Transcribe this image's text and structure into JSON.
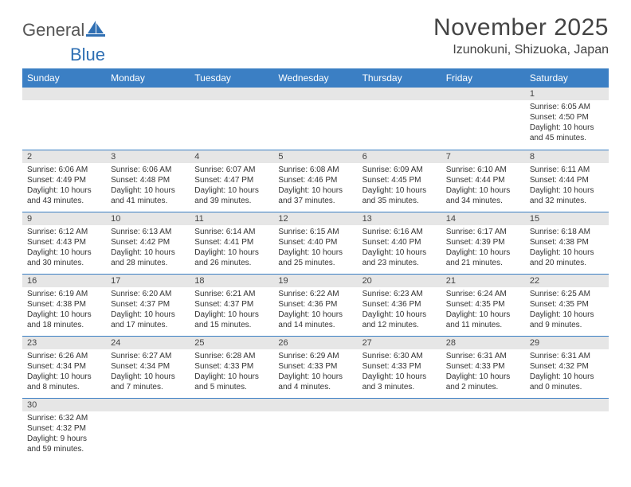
{
  "logo": {
    "text1": "General",
    "text2": "Blue",
    "color1": "#666666",
    "color2": "#2f6fb3"
  },
  "title": "November 2025",
  "location": "Izunokuni, Shizuoka, Japan",
  "header_bg": "#3b7fc4",
  "weekdays": [
    "Sunday",
    "Monday",
    "Tuesday",
    "Wednesday",
    "Thursday",
    "Friday",
    "Saturday"
  ],
  "weeks": [
    [
      null,
      null,
      null,
      null,
      null,
      null,
      {
        "n": "1",
        "r": "6:05 AM",
        "s": "4:50 PM",
        "d": "10 hours and 45 minutes."
      }
    ],
    [
      {
        "n": "2",
        "r": "6:06 AM",
        "s": "4:49 PM",
        "d": "10 hours and 43 minutes."
      },
      {
        "n": "3",
        "r": "6:06 AM",
        "s": "4:48 PM",
        "d": "10 hours and 41 minutes."
      },
      {
        "n": "4",
        "r": "6:07 AM",
        "s": "4:47 PM",
        "d": "10 hours and 39 minutes."
      },
      {
        "n": "5",
        "r": "6:08 AM",
        "s": "4:46 PM",
        "d": "10 hours and 37 minutes."
      },
      {
        "n": "6",
        "r": "6:09 AM",
        "s": "4:45 PM",
        "d": "10 hours and 35 minutes."
      },
      {
        "n": "7",
        "r": "6:10 AM",
        "s": "4:44 PM",
        "d": "10 hours and 34 minutes."
      },
      {
        "n": "8",
        "r": "6:11 AM",
        "s": "4:44 PM",
        "d": "10 hours and 32 minutes."
      }
    ],
    [
      {
        "n": "9",
        "r": "6:12 AM",
        "s": "4:43 PM",
        "d": "10 hours and 30 minutes."
      },
      {
        "n": "10",
        "r": "6:13 AM",
        "s": "4:42 PM",
        "d": "10 hours and 28 minutes."
      },
      {
        "n": "11",
        "r": "6:14 AM",
        "s": "4:41 PM",
        "d": "10 hours and 26 minutes."
      },
      {
        "n": "12",
        "r": "6:15 AM",
        "s": "4:40 PM",
        "d": "10 hours and 25 minutes."
      },
      {
        "n": "13",
        "r": "6:16 AM",
        "s": "4:40 PM",
        "d": "10 hours and 23 minutes."
      },
      {
        "n": "14",
        "r": "6:17 AM",
        "s": "4:39 PM",
        "d": "10 hours and 21 minutes."
      },
      {
        "n": "15",
        "r": "6:18 AM",
        "s": "4:38 PM",
        "d": "10 hours and 20 minutes."
      }
    ],
    [
      {
        "n": "16",
        "r": "6:19 AM",
        "s": "4:38 PM",
        "d": "10 hours and 18 minutes."
      },
      {
        "n": "17",
        "r": "6:20 AM",
        "s": "4:37 PM",
        "d": "10 hours and 17 minutes."
      },
      {
        "n": "18",
        "r": "6:21 AM",
        "s": "4:37 PM",
        "d": "10 hours and 15 minutes."
      },
      {
        "n": "19",
        "r": "6:22 AM",
        "s": "4:36 PM",
        "d": "10 hours and 14 minutes."
      },
      {
        "n": "20",
        "r": "6:23 AM",
        "s": "4:36 PM",
        "d": "10 hours and 12 minutes."
      },
      {
        "n": "21",
        "r": "6:24 AM",
        "s": "4:35 PM",
        "d": "10 hours and 11 minutes."
      },
      {
        "n": "22",
        "r": "6:25 AM",
        "s": "4:35 PM",
        "d": "10 hours and 9 minutes."
      }
    ],
    [
      {
        "n": "23",
        "r": "6:26 AM",
        "s": "4:34 PM",
        "d": "10 hours and 8 minutes."
      },
      {
        "n": "24",
        "r": "6:27 AM",
        "s": "4:34 PM",
        "d": "10 hours and 7 minutes."
      },
      {
        "n": "25",
        "r": "6:28 AM",
        "s": "4:33 PM",
        "d": "10 hours and 5 minutes."
      },
      {
        "n": "26",
        "r": "6:29 AM",
        "s": "4:33 PM",
        "d": "10 hours and 4 minutes."
      },
      {
        "n": "27",
        "r": "6:30 AM",
        "s": "4:33 PM",
        "d": "10 hours and 3 minutes."
      },
      {
        "n": "28",
        "r": "6:31 AM",
        "s": "4:33 PM",
        "d": "10 hours and 2 minutes."
      },
      {
        "n": "29",
        "r": "6:31 AM",
        "s": "4:32 PM",
        "d": "10 hours and 0 minutes."
      }
    ],
    [
      {
        "n": "30",
        "r": "6:32 AM",
        "s": "4:32 PM",
        "d": "9 hours and 59 minutes."
      },
      null,
      null,
      null,
      null,
      null,
      null
    ]
  ],
  "labels": {
    "sunrise": "Sunrise:",
    "sunset": "Sunset:",
    "daylight": "Daylight:"
  }
}
